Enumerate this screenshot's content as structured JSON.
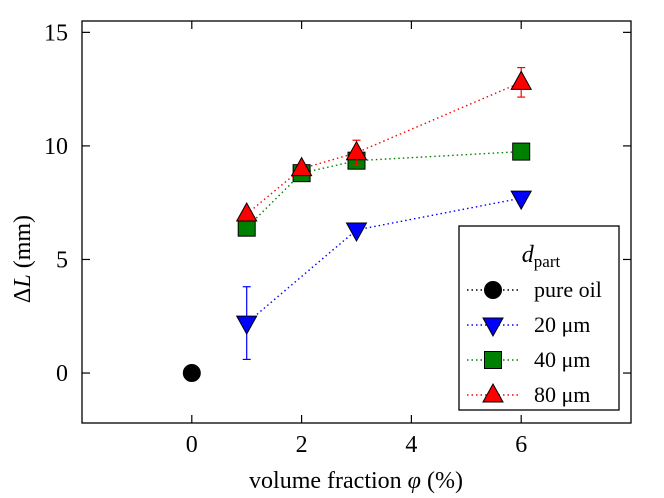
{
  "chart_data": {
    "type": "scatter",
    "xlabel_prefix": "volume fraction ",
    "xlabel_symbol": "φ",
    "xlabel_suffix": " (%)",
    "ylabel_prefix": "Δ",
    "ylabel_symbol": "L",
    "ylabel_suffix": " (mm)",
    "xlim": [
      -2,
      8
    ],
    "ylim": [
      -2.2,
      15.5
    ],
    "xticks": [
      0,
      2,
      4,
      6
    ],
    "yticks": [
      0,
      5,
      10,
      15
    ],
    "grid": false,
    "legend": {
      "placement": "bottom-right",
      "title_main": "d",
      "title_sub": "part"
    },
    "series": [
      {
        "name": "pure oil",
        "marker": "circle",
        "color": "#000000",
        "line": "none",
        "points": [
          {
            "x": 0,
            "y": 0.0
          }
        ]
      },
      {
        "name": "20 μm",
        "marker": "triangle-down",
        "color": "#0000ff",
        "line": "dotted",
        "points": [
          {
            "x": 1,
            "y": 2.2,
            "err": 1.6
          },
          {
            "x": 3,
            "y": 6.3,
            "err": 0.15
          },
          {
            "x": 6,
            "y": 7.7,
            "err": 0.2
          }
        ]
      },
      {
        "name": "40 μm",
        "marker": "square",
        "color": "#008000",
        "line": "dotted",
        "points": [
          {
            "x": 1,
            "y": 6.4
          },
          {
            "x": 2,
            "y": 8.8
          },
          {
            "x": 3,
            "y": 9.35,
            "err": 0.25
          },
          {
            "x": 6,
            "y": 9.75
          }
        ]
      },
      {
        "name": "80 μm",
        "marker": "triangle-up",
        "color": "#ff0000",
        "line": "dotted",
        "points": [
          {
            "x": 1,
            "y": 7.0
          },
          {
            "x": 2,
            "y": 9.0
          },
          {
            "x": 3,
            "y": 9.7,
            "err": 0.55
          },
          {
            "x": 6,
            "y": 12.8,
            "err": 0.65
          }
        ]
      }
    ]
  }
}
